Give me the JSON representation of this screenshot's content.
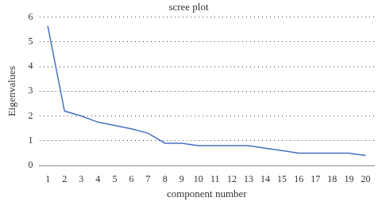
{
  "chart_data": {
    "type": "line",
    "title": "scree plot",
    "x_label": "component number",
    "y_label": "Eigenvalues",
    "categories": [
      "1",
      "2",
      "3",
      "4",
      "5",
      "6",
      "7",
      "8",
      "9",
      "10",
      "11",
      "12",
      "13",
      "14",
      "15",
      "16",
      "17",
      "18",
      "19",
      "20"
    ],
    "values": [
      5.65,
      2.2,
      2.0,
      1.75,
      1.62,
      1.48,
      1.3,
      0.9,
      0.9,
      0.8,
      0.8,
      0.8,
      0.8,
      0.7,
      0.6,
      0.5,
      0.5,
      0.5,
      0.5,
      0.4
    ],
    "color": "#4472c4",
    "ylim": [
      0,
      6
    ],
    "yticks": [
      0,
      1,
      2,
      3,
      4,
      5,
      6
    ],
    "grid": true
  }
}
